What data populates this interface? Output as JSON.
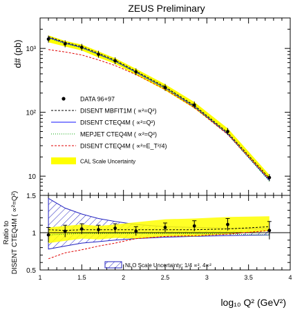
{
  "chart_data": [
    {
      "type": "line",
      "title": "ZEUS Preliminary",
      "ylabel": "d# (pb)",
      "xlabel": "",
      "xlim": [
        1.0,
        4.0
      ],
      "ylim": [
        5,
        3000
      ],
      "yscale": "log",
      "y_ticks": [
        {
          "value": 10,
          "label": "10"
        },
        {
          "value": 100,
          "label": "10²"
        },
        {
          "value": 1000,
          "label": "10³"
        }
      ],
      "legend_placement": "center-left",
      "data": {
        "name": "DATA 96+97",
        "x": [
          1.1,
          1.3,
          1.5,
          1.7,
          1.9,
          2.15,
          2.5,
          2.85,
          3.25,
          3.75
        ],
        "y": [
          1400,
          1180,
          1040,
          810,
          640,
          430,
          245,
          130,
          50,
          9.5
        ]
      },
      "band": {
        "name": "CAL Scale Uncertainty",
        "color": "#ffff00",
        "x": [
          1.1,
          1.3,
          1.5,
          1.7,
          1.9,
          2.15,
          2.5,
          2.85,
          3.25,
          3.75
        ],
        "lower": [
          1250,
          1070,
          930,
          720,
          575,
          385,
          220,
          115,
          45,
          8.6
        ],
        "upper": [
          1600,
          1310,
          1150,
          900,
          705,
          480,
          275,
          145,
          56,
          10.5
        ]
      },
      "series": [
        {
          "name": "DISENT MBFIT1M ( ∝²=Q²)",
          "color": "#000000",
          "dash": "3,2",
          "x": [
            1.1,
            1.3,
            1.5,
            1.7,
            1.9,
            2.15,
            2.5,
            2.85,
            3.25,
            3.75
          ],
          "y": [
            1530,
            1250,
            1070,
            840,
            655,
            440,
            250,
            128,
            48,
            9.3
          ]
        },
        {
          "name": "DISENT CTEQ4M ( ∝²=Q²)",
          "color": "#1010ff",
          "dash": "",
          "x": [
            1.1,
            1.3,
            1.5,
            1.7,
            1.9,
            2.15,
            2.5,
            2.85,
            3.25,
            3.75
          ],
          "y": [
            1480,
            1210,
            1030,
            810,
            630,
            425,
            240,
            123,
            46,
            8.6
          ]
        },
        {
          "name": "MEPJET CTEQ4M ( ∝²=Q²)",
          "color": "#00a000",
          "dash": "1,2",
          "x": [
            1.1,
            1.3,
            1.5,
            1.7,
            1.9,
            2.15,
            2.5,
            2.85,
            3.25,
            3.75
          ],
          "y": [
            1440,
            1190,
            1020,
            800,
            625,
            420,
            238,
            122,
            45,
            8.3
          ]
        },
        {
          "name": "DISENT CTEQ4M ( ∝²=E_T²/4)",
          "color": "#e00000",
          "dash": "3,2",
          "x": [
            1.1,
            1.3,
            1.5,
            1.7,
            1.9,
            2.15,
            2.5,
            2.85,
            3.25,
            3.75
          ],
          "y": [
            960,
            880,
            790,
            660,
            540,
            390,
            228,
            118,
            45,
            8.9
          ]
        }
      ]
    },
    {
      "type": "line",
      "ylabel_lines": [
        "Ratio to",
        "DISENT CTEQ4M ( ∝²=Q²)"
      ],
      "xlabel": "log₁₀ Q² (GeV²)",
      "xlim": [
        1.0,
        4.0
      ],
      "ylim": [
        0.5,
        1.5
      ],
      "x_ticks": [
        1,
        1.5,
        2,
        2.5,
        3,
        3.5,
        4
      ],
      "x_tick_labels": [
        "1",
        "1.5",
        "2",
        "2.5",
        "3",
        "3.5",
        "4"
      ],
      "y_ticks": [
        0.5,
        1,
        1.5
      ],
      "y_tick_labels": [
        "0.5",
        "1",
        "1.5"
      ],
      "reference_line": 1,
      "legend_label": "NLO Scale Uncertainty: 1/4  ∝², 4∝²",
      "nlo_band": {
        "color": "#2020c0",
        "x": [
          1.1,
          1.3,
          1.5,
          1.7,
          1.9,
          2.15,
          2.5,
          2.85,
          3.25,
          3.75
        ],
        "upper": [
          1.46,
          1.33,
          1.25,
          1.19,
          1.15,
          1.11,
          1.08,
          1.07,
          1.06,
          1.05
        ],
        "lower": [
          0.78,
          0.82,
          0.86,
          0.88,
          0.9,
          0.92,
          0.94,
          0.95,
          0.96,
          0.97
        ]
      },
      "cal_band": {
        "color": "#ffff00",
        "x": [
          1.1,
          1.3,
          1.5,
          1.7,
          1.9,
          2.15,
          2.5,
          2.85,
          3.25,
          3.75
        ],
        "upper": [
          1.07,
          1.09,
          1.11,
          1.09,
          1.11,
          1.14,
          1.18,
          1.19,
          1.21,
          1.22
        ],
        "lower": [
          0.86,
          0.89,
          0.92,
          0.91,
          0.93,
          0.92,
          0.95,
          0.95,
          0.98,
          1.02
        ]
      },
      "data": {
        "x": [
          1.1,
          1.3,
          1.5,
          1.7,
          1.9,
          2.15,
          2.5,
          2.85,
          3.25,
          3.75
        ],
        "y": [
          0.97,
          1.02,
          1.05,
          1.04,
          1.06,
          1.02,
          1.07,
          1.09,
          1.11,
          1.03
        ],
        "err": [
          0.1,
          0.08,
          0.07,
          0.06,
          0.06,
          0.06,
          0.06,
          0.07,
          0.08,
          0.12
        ]
      },
      "series": [
        {
          "name": "DISENT MBFIT1M ( ∝²=Q²)",
          "color": "#000000",
          "dash": "3,2",
          "x": [
            1.1,
            1.3,
            1.5,
            1.7,
            1.9,
            2.15,
            2.5,
            2.85,
            3.25,
            3.75
          ],
          "y": [
            1.04,
            1.03,
            1.04,
            1.04,
            1.04,
            1.04,
            1.04,
            1.04,
            1.05,
            1.08
          ]
        },
        {
          "name": "MEPJET CTEQ4M ( ∝²=Q²)",
          "color": "#00a000",
          "dash": "1,2",
          "x": [
            1.1,
            1.3,
            1.5,
            1.7,
            1.9,
            2.15,
            2.5,
            2.85,
            3.25,
            3.75
          ],
          "y": [
            0.97,
            0.98,
            0.99,
            0.99,
            0.99,
            0.99,
            0.99,
            0.99,
            0.98,
            0.97
          ]
        },
        {
          "name": "DISENT CTEQ4M ( ∝²=E_T²/4)",
          "color": "#e00000",
          "dash": "3,2",
          "x": [
            1.1,
            1.3,
            1.5,
            1.7,
            1.9,
            2.15,
            2.5,
            2.85,
            3.25,
            3.75
          ],
          "y": [
            0.65,
            0.73,
            0.77,
            0.82,
            0.86,
            0.92,
            0.95,
            0.96,
            0.98,
            1.03
          ]
        }
      ]
    }
  ]
}
